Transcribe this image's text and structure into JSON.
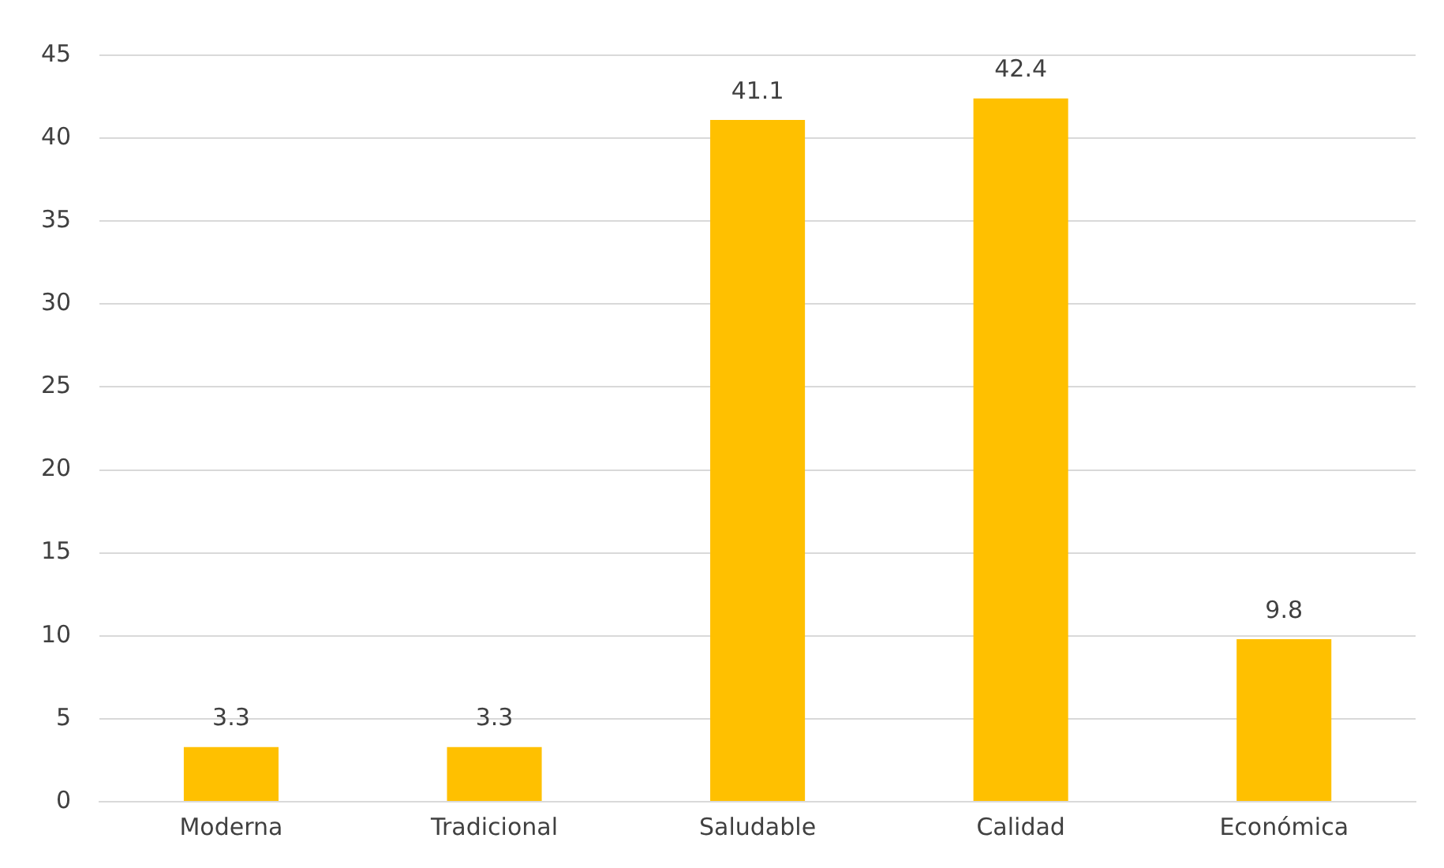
{
  "chart_data": {
    "type": "bar",
    "categories": [
      "Moderna",
      "Tradicional",
      "Saludable",
      "Calidad",
      "Económica"
    ],
    "values": [
      3.3,
      3.3,
      41.1,
      42.4,
      9.8
    ],
    "color": "#ffc000",
    "ylim": [
      0,
      45
    ],
    "yticks": [
      0,
      5,
      10,
      15,
      20,
      25,
      30,
      35,
      40,
      45
    ],
    "grid": "y",
    "data_labels": true
  }
}
